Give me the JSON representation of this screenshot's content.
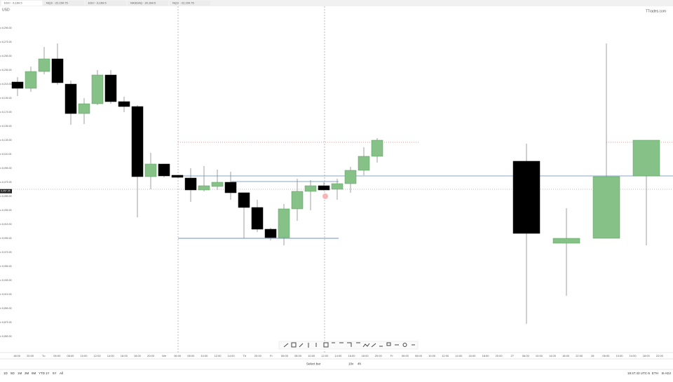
{
  "tabs": [
    "ES1! · 6,169.5",
    "NQ1! · 22,150.75",
    "ES1! · 6,169.5",
    "NASDAQ · 20,168.5",
    "NQ1! · 22,150.75"
  ],
  "brand": "TTrades.com",
  "symbol_label": "USD",
  "chart_data": {
    "type": "candlestick",
    "ylim": [
      5830,
      6300
    ],
    "yticks": [
      {
        "value": 6290,
        "label": "6,290.00"
      },
      {
        "value": 6270,
        "label": "6,270.00"
      },
      {
        "value": 6250,
        "label": "6,250.00"
      },
      {
        "value": 6230,
        "label": "6,230.00"
      },
      {
        "value": 6210,
        "label": "6,210.00"
      },
      {
        "value": 6190,
        "label": "6,190.00"
      },
      {
        "value": 6170,
        "label": "6,170.00"
      },
      {
        "value": 6150,
        "label": "6,150.00"
      },
      {
        "value": 6130,
        "label": "6,130.00"
      },
      {
        "value": 6110,
        "label": "6,110.00"
      },
      {
        "value": 6090,
        "label": "6,090.00"
      },
      {
        "value": 6070,
        "label": "6,070.00"
      },
      {
        "value": 6050,
        "label": "6,050.00"
      },
      {
        "value": 6030,
        "label": "6,030.00"
      },
      {
        "value": 6010,
        "label": "6,010.00"
      },
      {
        "value": 5990,
        "label": "5,990.00"
      },
      {
        "value": 5970,
        "label": "5,970.00"
      },
      {
        "value": 5950,
        "label": "5,950.00"
      },
      {
        "value": 5930,
        "label": "5,930.00"
      },
      {
        "value": 5910,
        "label": "5,910.00"
      },
      {
        "value": 5890,
        "label": "5,890.00"
      },
      {
        "value": 5870,
        "label": "5,870.00"
      },
      {
        "value": 5850,
        "label": "5,850.00"
      }
    ],
    "last_price": {
      "value": 6057.25,
      "label": "6,057.25"
    },
    "levels": [
      6079,
      6071,
      5990,
      6127,
      6060
    ],
    "panels": [
      {
        "open": [
          6213,
          6204,
          6228,
          6246,
          6210,
          6168,
          6182,
          6223,
          6185,
          6178,
          6078,
          6096,
          6080,
          6076,
          6059,
          6064,
          6070,
          6055,
          6034,
          6003,
          5991,
          6032,
          6057,
          6065,
          6060,
          6068,
          6087,
          6107
        ],
        "high": [
          6220,
          6235,
          6263,
          6268,
          6215,
          6190,
          6230,
          6230,
          6192,
          6180,
          6112,
          6096,
          6080,
          6090,
          6093,
          6088,
          6085,
          6055,
          6045,
          6005,
          6039,
          6075,
          6073,
          6070,
          6075,
          6092,
          6120,
          6133
        ],
        "low": [
          6193,
          6199,
          6224,
          6209,
          6152,
          6153,
          6180,
          6182,
          6170,
          6020,
          6060,
          6077,
          6077,
          6042,
          6057,
          6059,
          6045,
          5990,
          5999,
          5987,
          5980,
          6015,
          6030,
          6058,
          6045,
          6055,
          6080,
          6098
        ],
        "close": [
          6204,
          6228,
          6246,
          6212,
          6168,
          6182,
          6223,
          6185,
          6178,
          6078,
          6096,
          6079,
          6077,
          6059,
          6065,
          6070,
          6055,
          6034,
          6003,
          5991,
          6032,
          6057,
          6065,
          6059,
          6068,
          6087,
          6107,
          6130
        ]
      },
      {
        "open": [
          6100,
          5983,
          5990,
          6079
        ],
        "high": [
          6125,
          6033,
          6268,
          6130
        ],
        "low": [
          5868,
          5908,
          5990,
          5980
        ],
        "close": [
          5997,
          5990,
          6078,
          6130
        ]
      }
    ],
    "time_labels": [
      "18:00",
      "20:00",
      "Tu",
      "06:00",
      "08:00",
      "10:00",
      "12:00",
      "14:00",
      "16:00",
      "18:00",
      "20:00",
      "We",
      "06:00",
      "08:00",
      "10:00",
      "12:00",
      "14:00",
      "Th",
      "20:00",
      "Fr",
      "06:00",
      "08:00",
      "10:00",
      "12:00",
      "14:00",
      "16:00",
      "18:00",
      "20:00",
      "Fr",
      "06:00",
      "08:00",
      "10:00",
      "12:00",
      "14:00",
      "16:00",
      "18:00",
      "20:00",
      "27",
      "06:00",
      "10:00",
      "14:00",
      "18:00",
      "22:00",
      "28",
      "06:00",
      "10:00",
      "14:00",
      "18:00",
      "22:00"
    ]
  },
  "bottom": {
    "ranges": [
      "1D",
      "5D",
      "1M",
      "3M",
      "6M",
      "YTD",
      "1Y",
      "5Y",
      "All"
    ],
    "select_bar": "Select bar",
    "speed": "10x",
    "interval": "4h",
    "clock": "19:47:43 UTC-5",
    "session": "ETH",
    "adj": "B-ADJ"
  }
}
